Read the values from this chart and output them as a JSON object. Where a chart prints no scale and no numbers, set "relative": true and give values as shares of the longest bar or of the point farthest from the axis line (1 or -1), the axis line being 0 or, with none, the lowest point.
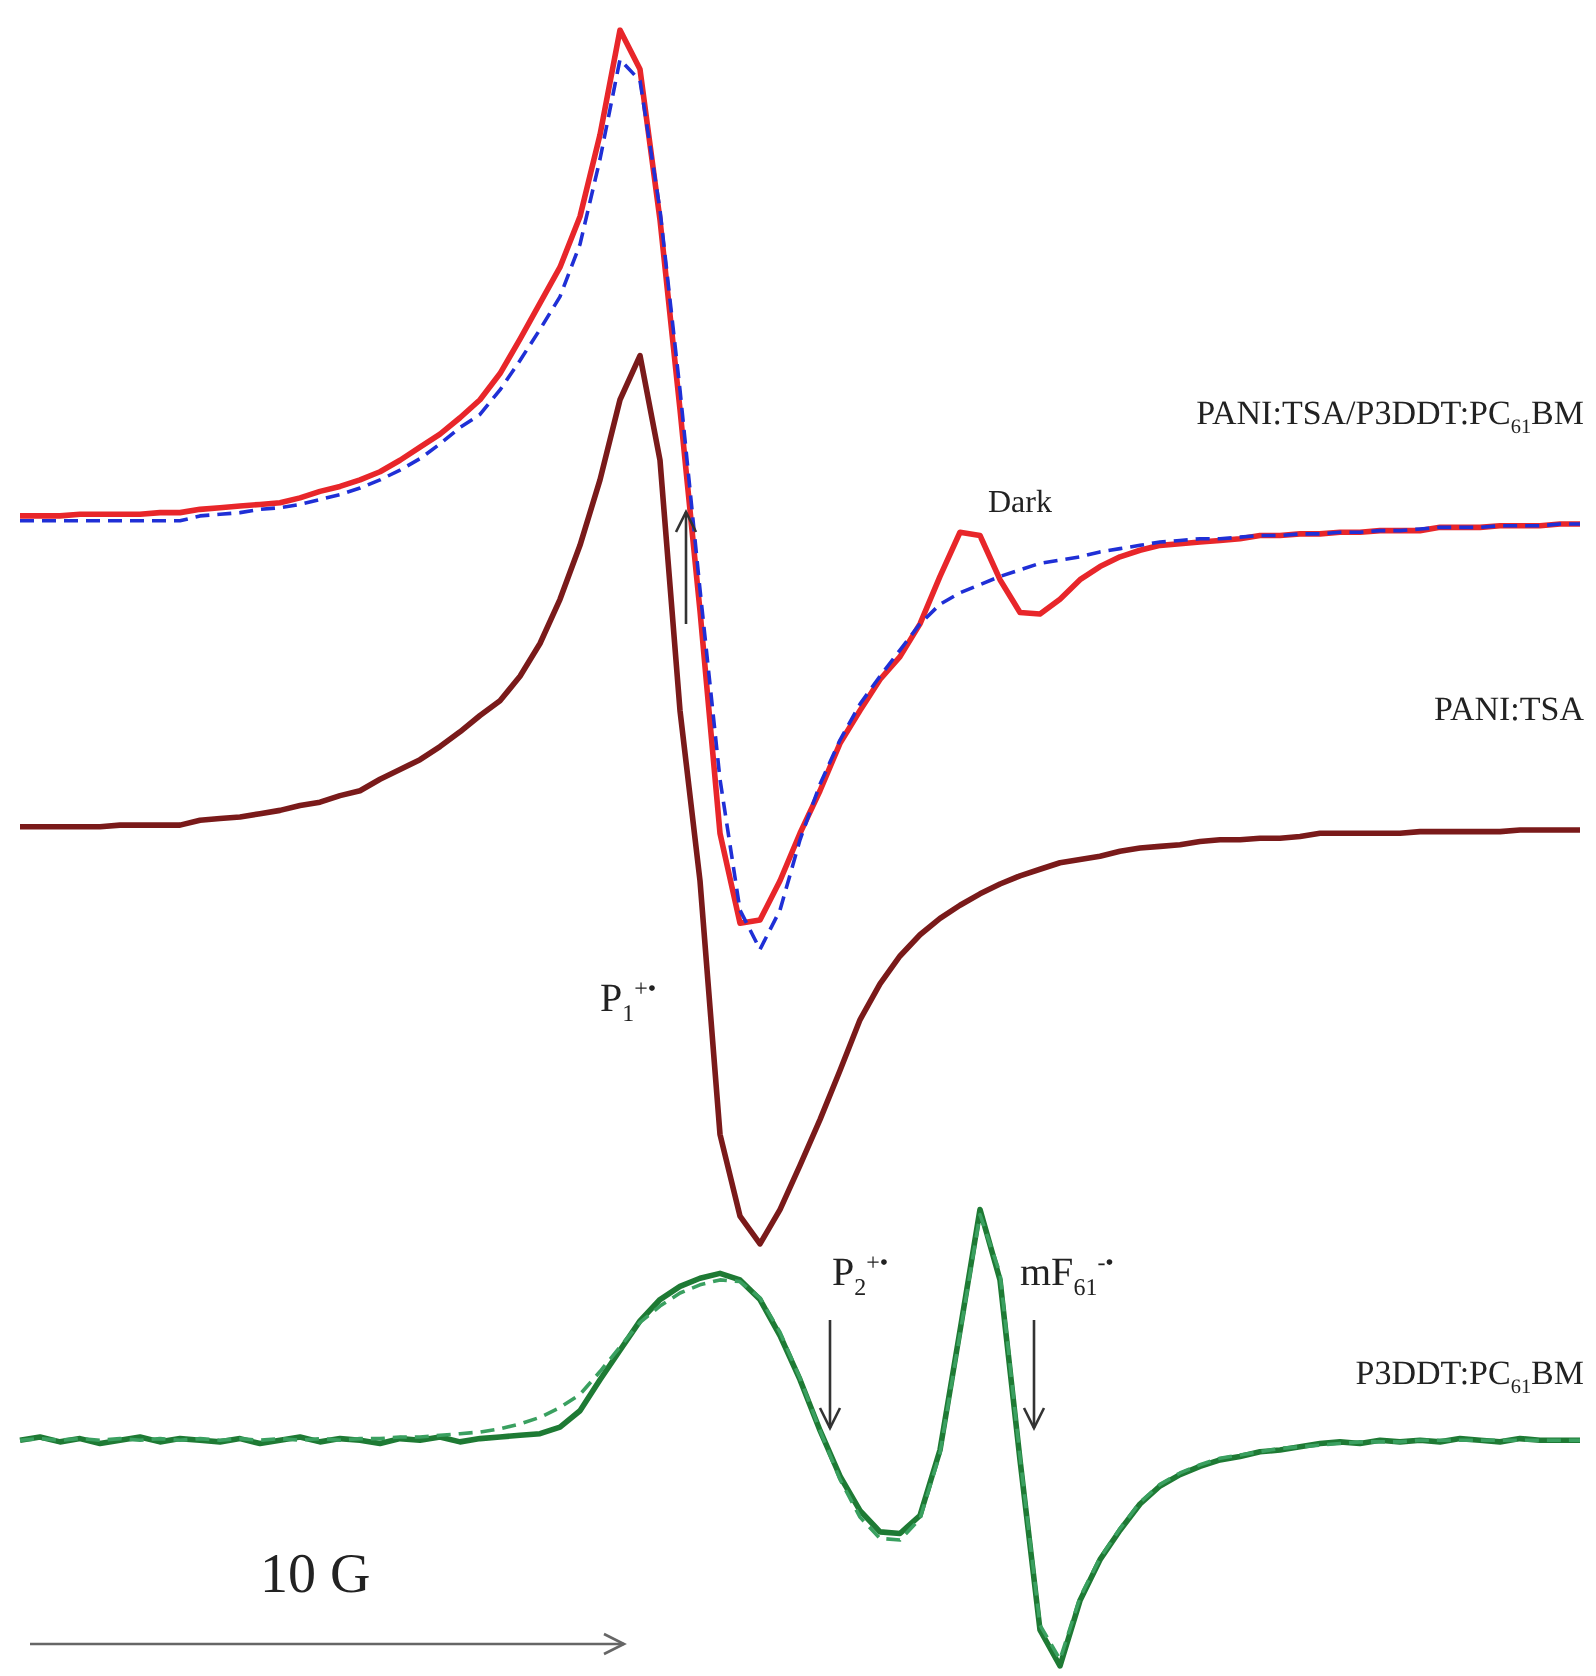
{
  "chart_data": {
    "type": "line",
    "relative": true,
    "marker": "none",
    "categories": [
      null,
      null,
      null,
      null,
      null,
      null,
      null,
      null,
      null,
      null,
      null,
      null,
      null,
      null,
      null,
      null,
      null,
      null,
      null,
      null,
      null,
      null,
      null,
      null,
      null,
      null,
      null,
      null,
      null,
      null,
      null,
      null,
      null,
      null,
      null,
      null,
      null,
      null,
      null,
      null,
      null,
      null,
      null,
      null,
      null,
      null,
      null,
      null,
      null,
      null,
      null,
      null,
      null,
      null,
      null,
      null,
      null,
      null,
      null,
      null,
      null,
      null,
      null,
      null,
      null,
      null,
      null,
      null,
      null,
      null,
      null,
      null,
      null,
      null,
      null,
      null,
      null,
      null,
      null
    ],
    "annotations": [
      "PANI:TSA/P3DDT:PC$_{61}$BM",
      "Dark",
      "PANI:TSA",
      "P3DDT:PC$_{61}$BM",
      "P$_{1}$$^{+•}$",
      "P$_{2}$$^{+•}$",
      "mF$_{61}$$^{-•}$",
      "10 G"
    ],
    "series": [
      {
        "color": "#e8262a",
        "line_style": "solid",
        "values": [
          0.703,
          0.703,
          0.703,
          0.704,
          0.704,
          0.704,
          0.704,
          0.705,
          0.705,
          0.707,
          0.708,
          0.709,
          0.71,
          0.711,
          0.714,
          0.718,
          0.721,
          0.725,
          0.73,
          0.737,
          0.745,
          0.753,
          0.763,
          0.774,
          0.79,
          0.811,
          0.833,
          0.855,
          0.886,
          0.936,
          1,
          0.976,
          0.884,
          0.768,
          0.645,
          0.509,
          0.454,
          0.456,
          0.48,
          0.509,
          0.535,
          0.564,
          0.584,
          0.603,
          0.617,
          0.637,
          0.666,
          0.693,
          0.691,
          0.664,
          0.644,
          0.643,
          0.652,
          0.664,
          0.672,
          0.678,
          0.682,
          0.685,
          0.686,
          0.687,
          0.688,
          0.689,
          0.691,
          0.691,
          0.692,
          0.692,
          0.693,
          0.693,
          0.694,
          0.694,
          0.694,
          0.696,
          0.696,
          0.696,
          0.697,
          0.697,
          0.697,
          0.698,
          0.698
        ]
      },
      {
        "color": "#1f2fd6",
        "line_style": "dashed",
        "values": [
          0.7,
          0.7,
          0.7,
          0.7,
          0.7,
          0.7,
          0.7,
          0.7,
          0.7,
          0.703,
          0.704,
          0.705,
          0.707,
          0.708,
          0.71,
          0.713,
          0.716,
          0.72,
          0.725,
          0.731,
          0.738,
          0.747,
          0.757,
          0.765,
          0.78,
          0.798,
          0.817,
          0.837,
          0.869,
          0.921,
          0.982,
          0.969,
          0.89,
          0.78,
          0.658,
          0.542,
          0.462,
          0.438,
          0.462,
          0.505,
          0.539,
          0.566,
          0.588,
          0.605,
          0.621,
          0.637,
          0.649,
          0.656,
          0.661,
          0.666,
          0.67,
          0.674,
          0.676,
          0.678,
          0.681,
          0.683,
          0.685,
          0.687,
          0.688,
          0.689,
          0.689,
          0.69,
          0.691,
          0.691,
          0.692,
          0.692,
          0.693,
          0.693,
          0.694,
          0.694,
          0.695,
          0.696,
          0.696,
          0.696,
          0.697,
          0.697,
          0.697,
          0.698,
          0.698
        ]
      },
      {
        "color": "#7a1a1a",
        "line_style": "solid",
        "values": [
          0.513,
          0.513,
          0.513,
          0.513,
          0.513,
          0.514,
          0.514,
          0.514,
          0.514,
          0.517,
          0.518,
          0.519,
          0.521,
          0.523,
          0.526,
          0.528,
          0.532,
          0.535,
          0.542,
          0.548,
          0.554,
          0.562,
          0.571,
          0.581,
          0.59,
          0.605,
          0.625,
          0.652,
          0.685,
          0.725,
          0.774,
          0.801,
          0.737,
          0.584,
          0.48,
          0.325,
          0.275,
          0.258,
          0.279,
          0.306,
          0.334,
          0.364,
          0.395,
          0.417,
          0.434,
          0.447,
          0.457,
          0.465,
          0.472,
          0.478,
          0.483,
          0.487,
          0.491,
          0.493,
          0.495,
          0.498,
          0.5,
          0.501,
          0.502,
          0.504,
          0.505,
          0.505,
          0.506,
          0.506,
          0.507,
          0.509,
          0.509,
          0.509,
          0.509,
          0.509,
          0.51,
          0.51,
          0.51,
          0.51,
          0.51,
          0.511,
          0.511,
          0.511,
          0.511
        ]
      },
      {
        "color": "#1e7a34",
        "line_style": "solid",
        "values": [
          0.138,
          0.14,
          0.137,
          0.139,
          0.136,
          0.138,
          0.14,
          0.137,
          0.139,
          0.138,
          0.137,
          0.139,
          0.136,
          0.138,
          0.14,
          0.137,
          0.139,
          0.138,
          0.136,
          0.139,
          0.138,
          0.14,
          0.137,
          0.139,
          0.14,
          0.141,
          0.142,
          0.146,
          0.156,
          0.175,
          0.193,
          0.211,
          0.224,
          0.232,
          0.237,
          0.24,
          0.236,
          0.224,
          0.202,
          0.175,
          0.144,
          0.116,
          0.095,
          0.082,
          0.081,
          0.092,
          0.132,
          0.205,
          0.279,
          0.236,
          0.126,
          0.022,
          0,
          0.04,
          0.065,
          0.083,
          0.099,
          0.11,
          0.117,
          0.122,
          0.126,
          0.128,
          0.131,
          0.132,
          0.134,
          0.136,
          0.137,
          0.136,
          0.138,
          0.137,
          0.138,
          0.137,
          0.139,
          0.138,
          0.137,
          0.139,
          0.138,
          0.138,
          0.138
        ]
      },
      {
        "color": "#3aa060",
        "line_style": "dashed",
        "values": [
          0.138,
          0.139,
          0.138,
          0.139,
          0.138,
          0.139,
          0.138,
          0.139,
          0.138,
          0.139,
          0.138,
          0.139,
          0.138,
          0.139,
          0.138,
          0.139,
          0.138,
          0.139,
          0.139,
          0.14,
          0.14,
          0.141,
          0.142,
          0.143,
          0.145,
          0.148,
          0.152,
          0.158,
          0.166,
          0.18,
          0.195,
          0.21,
          0.22,
          0.228,
          0.233,
          0.236,
          0.235,
          0.225,
          0.204,
          0.176,
          0.144,
          0.114,
          0.091,
          0.078,
          0.077,
          0.09,
          0.13,
          0.203,
          0.276,
          0.24,
          0.128,
          0.025,
          0.004,
          0.042,
          0.066,
          0.084,
          0.1,
          0.111,
          0.118,
          0.123,
          0.127,
          0.129,
          0.131,
          0.133,
          0.134,
          0.135,
          0.136,
          0.137,
          0.137,
          0.137,
          0.138,
          0.138,
          0.138,
          0.138,
          0.138,
          0.138,
          0.138,
          0.138,
          0.138
        ]
      }
    ]
  }
}
